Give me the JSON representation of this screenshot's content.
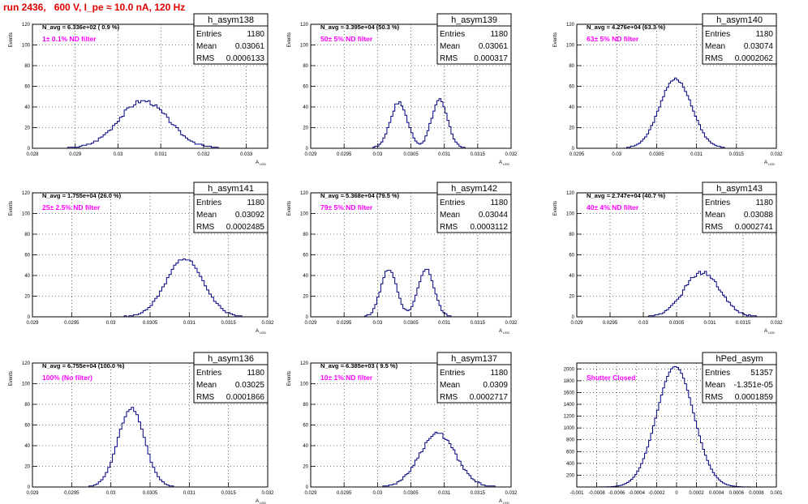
{
  "canvas_title": "run 2436,   600 V, I_pe ≈ 10.0 nA, 120 Hz",
  "chart_data": [
    {
      "type": "histogram",
      "name": "h_asym138",
      "navg": "N_avg = 6.336e+02 ( 0.9 %)",
      "filter": "1± 0.1% ND filter",
      "stats": {
        "Entries": "1180",
        "Mean": "0.03061",
        "RMS": "0.0006133"
      },
      "ylabel": "Events",
      "xlabel": "A",
      "xlabel_sub": "LED",
      "xlim": [
        0.028,
        0.0335
      ],
      "ylim": [
        0,
        120
      ],
      "xticks": [
        "0.028",
        "0.029",
        "0.03",
        "0.031",
        "0.032",
        "0.033"
      ],
      "xtickvals": [
        0.028,
        0.029,
        0.03,
        0.031,
        0.032,
        0.033
      ],
      "yticks": [
        0,
        20,
        40,
        60,
        80,
        100,
        120
      ],
      "peaks": [
        {
          "mu": 0.0306,
          "sigma": 0.00058,
          "amp": 46
        }
      ],
      "rough": 0.28,
      "seed": 3
    },
    {
      "type": "histogram",
      "name": "h_asym139",
      "navg": "N_avg = 3.395e+04 (50.3 %)",
      "filter": "50± 5% ND filter",
      "stats": {
        "Entries": "1180",
        "Mean": "0.03061",
        "RMS": "0.000317"
      },
      "ylabel": "Events",
      "xlabel": "A",
      "xlabel_sub": "LED",
      "xlim": [
        0.029,
        0.032
      ],
      "ylim": [
        0,
        120
      ],
      "xticks": [
        "0.029",
        "0.0295",
        "0.03",
        "0.0305",
        "0.031",
        "0.0315",
        "0.032"
      ],
      "xtickvals": [
        0.029,
        0.0295,
        0.03,
        0.0305,
        0.031,
        0.0315,
        0.032
      ],
      "yticks": [
        0,
        20,
        40,
        60,
        80,
        100,
        120
      ],
      "peaks": [
        {
          "mu": 0.03032,
          "sigma": 0.00013,
          "amp": 44
        },
        {
          "mu": 0.03093,
          "sigma": 0.00012,
          "amp": 47
        }
      ],
      "rough": 0.22,
      "seed": 7
    },
    {
      "type": "histogram",
      "name": "h_asym140",
      "navg": "N_avg = 4.276e+04 (63.3 %)",
      "filter": "63± 5% ND filter",
      "stats": {
        "Entries": "1180",
        "Mean": "0.03074",
        "RMS": "0.0002062"
      },
      "ylabel": "Events",
      "xlabel": "A",
      "xlabel_sub": "LED",
      "xlim": [
        0.0295,
        0.032
      ],
      "ylim": [
        0,
        120
      ],
      "xticks": [
        "0.0295",
        "0.03",
        "0.0305",
        "0.031",
        "0.0315",
        "0.032"
      ],
      "xtickvals": [
        0.0295,
        0.03,
        0.0305,
        0.031,
        0.0315,
        0.032
      ],
      "yticks": [
        0,
        20,
        40,
        60,
        80,
        100,
        120
      ],
      "peaks": [
        {
          "mu": 0.03074,
          "sigma": 0.0002,
          "amp": 67
        }
      ],
      "rough": 0.15,
      "seed": 11
    },
    {
      "type": "histogram",
      "name": "h_asym141",
      "navg": "N_avg = 1.755e+04 (26.0 %)",
      "filter": "25± 2.5% ND filter",
      "stats": {
        "Entries": "1180",
        "Mean": "0.03092",
        "RMS": "0.0002485"
      },
      "ylabel": "Events",
      "xlabel": "A",
      "xlabel_sub": "LED",
      "xlim": [
        0.029,
        0.032
      ],
      "ylim": [
        0,
        120
      ],
      "xticks": [
        "0.029",
        "0.0295",
        "0.03",
        "0.0305",
        "0.031",
        "0.0315",
        "0.032"
      ],
      "xtickvals": [
        0.029,
        0.0295,
        0.03,
        0.0305,
        0.031,
        0.0315,
        0.032
      ],
      "yticks": [
        0,
        20,
        40,
        60,
        80,
        100,
        120
      ],
      "peaks": [
        {
          "mu": 0.03094,
          "sigma": 0.00024,
          "amp": 56
        }
      ],
      "rough": 0.18,
      "seed": 13
    },
    {
      "type": "histogram",
      "name": "h_asym142",
      "navg": "N_avg = 5.368e+04 (79.5 %)",
      "filter": "79± 5% ND filter",
      "stats": {
        "Entries": "1180",
        "Mean": "0.03044",
        "RMS": "0.0003112"
      },
      "ylabel": "Events",
      "xlabel": "A",
      "xlabel_sub": "LED",
      "xlim": [
        0.029,
        0.032
      ],
      "ylim": [
        0,
        120
      ],
      "xticks": [
        "0.029",
        "0.0295",
        "0.03",
        "0.0305",
        "0.031",
        "0.0315",
        "0.032"
      ],
      "xtickvals": [
        0.029,
        0.0295,
        0.03,
        0.0305,
        0.031,
        0.0315,
        0.032
      ],
      "yticks": [
        0,
        20,
        40,
        60,
        80,
        100,
        120
      ],
      "peaks": [
        {
          "mu": 0.03017,
          "sigma": 0.00012,
          "amp": 46
        },
        {
          "mu": 0.03073,
          "sigma": 0.00012,
          "amp": 46
        }
      ],
      "rough": 0.22,
      "seed": 17
    },
    {
      "type": "histogram",
      "name": "h_asym143",
      "navg": "N_avg = 2.747e+04 (40.7 %)",
      "filter": "40± 4% ND filter",
      "stats": {
        "Entries": "1180",
        "Mean": "0.03088",
        "RMS": "0.0002741"
      },
      "ylabel": "Events",
      "xlabel": "A",
      "xlabel_sub": "LED",
      "xlim": [
        0.029,
        0.032
      ],
      "ylim": [
        0,
        120
      ],
      "xticks": [
        "0.029",
        "0.0295",
        "0.03",
        "0.0305",
        "0.031",
        "0.0315",
        "0.032"
      ],
      "xtickvals": [
        0.029,
        0.0295,
        0.03,
        0.0305,
        0.031,
        0.0315,
        0.032
      ],
      "yticks": [
        0,
        20,
        40,
        60,
        80,
        100,
        120
      ],
      "peaks": [
        {
          "mu": 0.03088,
          "sigma": 0.00027,
          "amp": 43
        }
      ],
      "rough": 0.3,
      "seed": 19
    },
    {
      "type": "histogram",
      "name": "h_asym136",
      "navg": "N_avg = 6.755e+04 (100.0 %)",
      "filter": "100% (No filter)",
      "stats": {
        "Entries": "1180",
        "Mean": "0.03025",
        "RMS": "0.0001866"
      },
      "ylabel": "Events",
      "xlabel": "A",
      "xlabel_sub": "LED",
      "xlim": [
        0.029,
        0.032
      ],
      "ylim": [
        0,
        120
      ],
      "xticks": [
        "0.029",
        "0.0295",
        "0.03",
        "0.0305",
        "0.031",
        "0.0315",
        "0.032"
      ],
      "xtickvals": [
        0.029,
        0.0295,
        0.03,
        0.0305,
        0.031,
        0.0315,
        0.032
      ],
      "yticks": [
        0,
        20,
        40,
        60,
        80,
        100,
        120
      ],
      "peaks": [
        {
          "mu": 0.03026,
          "sigma": 0.00017,
          "amp": 76
        }
      ],
      "rough": 0.12,
      "seed": 23
    },
    {
      "type": "histogram",
      "name": "h_asym137",
      "navg": "N_avg = 6.385e+03 ( 9.5 %)",
      "filter": "10± 1% ND filter",
      "stats": {
        "Entries": "1180",
        "Mean": "0.0309",
        "RMS": "0.0002717"
      },
      "ylabel": "Events",
      "xlabel": "A",
      "xlabel_sub": "LED",
      "xlim": [
        0.029,
        0.032
      ],
      "ylim": [
        0,
        120
      ],
      "xticks": [
        "0.029",
        "0.0295",
        "0.03",
        "0.0305",
        "0.031",
        "0.0315",
        "0.032"
      ],
      "xtickvals": [
        0.029,
        0.0295,
        0.03,
        0.0305,
        0.031,
        0.0315,
        0.032
      ],
      "yticks": [
        0,
        20,
        40,
        60,
        80,
        100,
        120
      ],
      "peaks": [
        {
          "mu": 0.0309,
          "sigma": 0.00027,
          "amp": 52
        }
      ],
      "rough": 0.25,
      "seed": 29
    },
    {
      "type": "histogram",
      "name": "hPed_asym",
      "navg": "",
      "filter": "Shutter Closed",
      "stats": {
        "Entries": "51357",
        "Mean": "-1.351e-05",
        "RMS": "0.0001859"
      },
      "ylabel": "",
      "xlabel": "",
      "xlabel_sub": "",
      "xlim": [
        -0.001,
        0.001
      ],
      "ylim": [
        0,
        2100
      ],
      "xticks": [
        "-0.001",
        "-0.0008",
        "-0.0006",
        "-0.0004",
        "-0.0002",
        "0",
        "0.0002",
        "0.0004",
        "0.0006",
        "0.0008",
        "0.001"
      ],
      "xtickvals": [
        -0.001,
        -0.0008,
        -0.0006,
        -0.0004,
        -0.0002,
        0,
        0.0002,
        0.0004,
        0.0006,
        0.0008,
        0.001
      ],
      "yticks": [
        200,
        400,
        600,
        800,
        1000,
        1200,
        1400,
        1600,
        1800,
        2000
      ],
      "peaks": [
        {
          "mu": -1.35e-05,
          "sigma": 0.000186,
          "amp": 2040
        }
      ],
      "rough": 0.02,
      "seed": 31
    }
  ],
  "colors": {
    "line": "#000080",
    "title": "#e00000",
    "filter": "#ff00ff",
    "grid": "#000000"
  }
}
